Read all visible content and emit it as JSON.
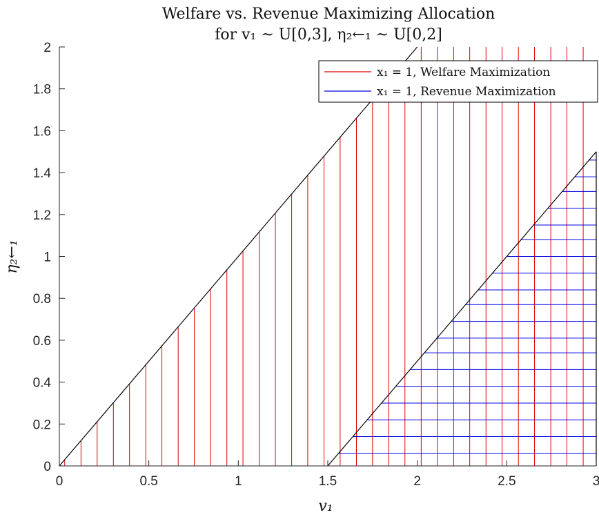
{
  "chart_data": {
    "type": "area",
    "title": [
      "Welfare vs. Revenue Maximizing Allocation",
      "for v₁ ~ U[0,3], η₂←₁ ~ U[0,2]"
    ],
    "xlabel": "v₁",
    "ylabel": "η₂←₁",
    "xlim": [
      0,
      3
    ],
    "ylim": [
      0,
      2
    ],
    "xticks": [
      0,
      0.5,
      1,
      1.5,
      2,
      2.5,
      3
    ],
    "xtick_labels": [
      "0",
      "0.5",
      "1",
      "1.5",
      "2",
      "2.5",
      "3"
    ],
    "yticks": [
      0,
      0.2,
      0.4,
      0.6,
      0.8,
      1,
      1.2,
      1.4,
      1.6,
      1.8,
      2
    ],
    "ytick_labels": [
      "0",
      "0.2",
      "0.4",
      "0.6",
      "0.8",
      "1",
      "1.2",
      "1.4",
      "1.6",
      "1.8",
      "2"
    ],
    "grid": false,
    "legend_position": "top-right",
    "series": [
      {
        "name": "x₁ = 1, Welfare Maximization",
        "color": "#e00000",
        "style": "vertical-hatch",
        "region": "eta <= v1",
        "boundary": {
          "x": [
            0,
            2
          ],
          "y": [
            0,
            2
          ]
        },
        "hatch_x": [
          0.03,
          0.121,
          0.211,
          0.302,
          0.392,
          0.483,
          0.573,
          0.664,
          0.754,
          0.845,
          0.936,
          1.026,
          1.117,
          1.207,
          1.298,
          1.388,
          1.479,
          1.569,
          1.66,
          1.75,
          1.841,
          1.931,
          2.022,
          2.112,
          2.203,
          2.293,
          2.384,
          2.474,
          2.565,
          2.655,
          2.746,
          2.836,
          2.927
        ]
      },
      {
        "name": "x₁ = 1, Revenue Maximization",
        "color": "#0000e0",
        "style": "horizontal-hatch",
        "region": "eta <= v1 - 1.5",
        "boundary": {
          "x": [
            1.5,
            3
          ],
          "y": [
            0,
            1.5
          ]
        },
        "hatch_y": [
          0.06,
          0.14,
          0.22,
          0.3,
          0.38,
          0.46,
          0.54,
          0.61,
          0.69,
          0.77,
          0.84,
          0.92,
          1.0,
          1.08,
          1.15,
          1.23,
          1.31,
          1.38,
          1.46
        ]
      }
    ]
  }
}
